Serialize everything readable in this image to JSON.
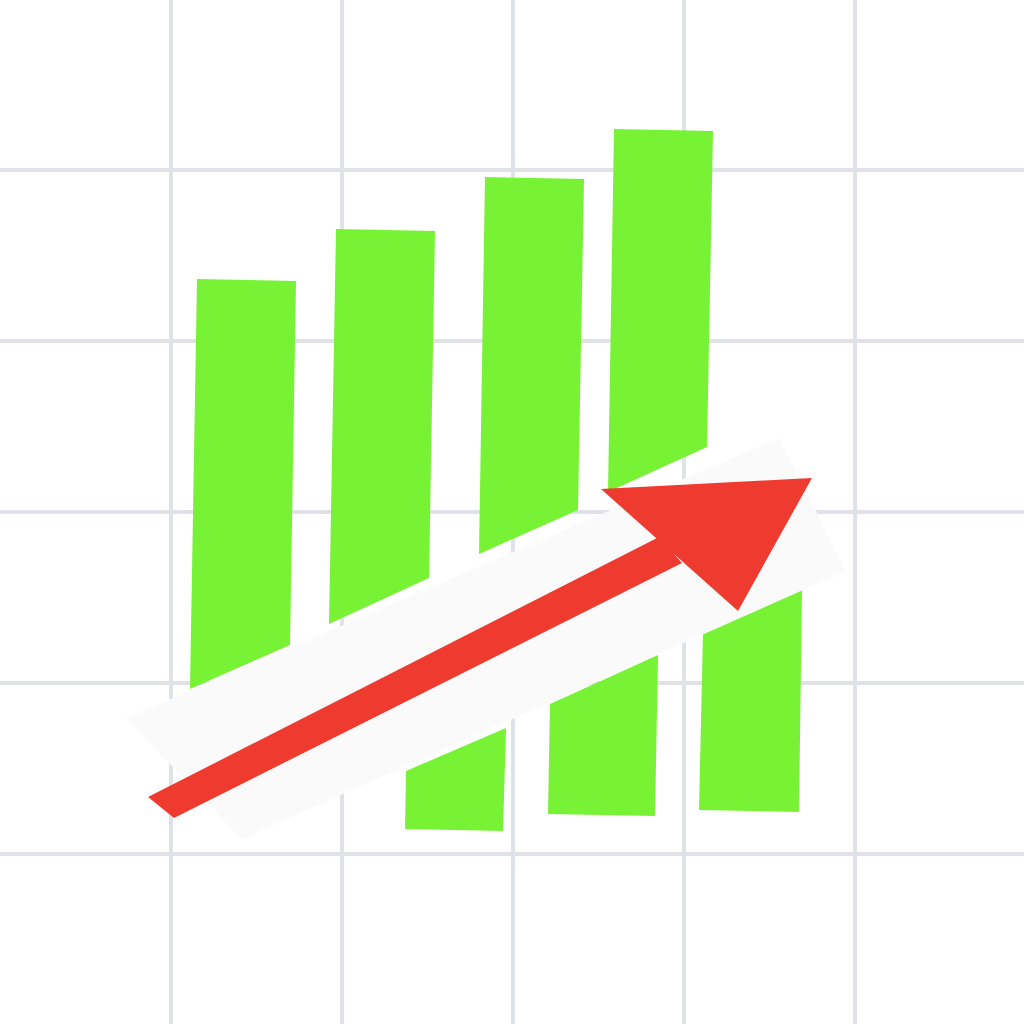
{
  "icon": {
    "subject": "growth-chart-icon",
    "background_color": "#ffffff",
    "grid_color": "#dfe2e6",
    "bar_color": "#77f235",
    "arrow_color": "#ef3b2f",
    "arrow_band_color": "#fafafa",
    "bar_count": 4,
    "arrow_direction": "up-right"
  }
}
